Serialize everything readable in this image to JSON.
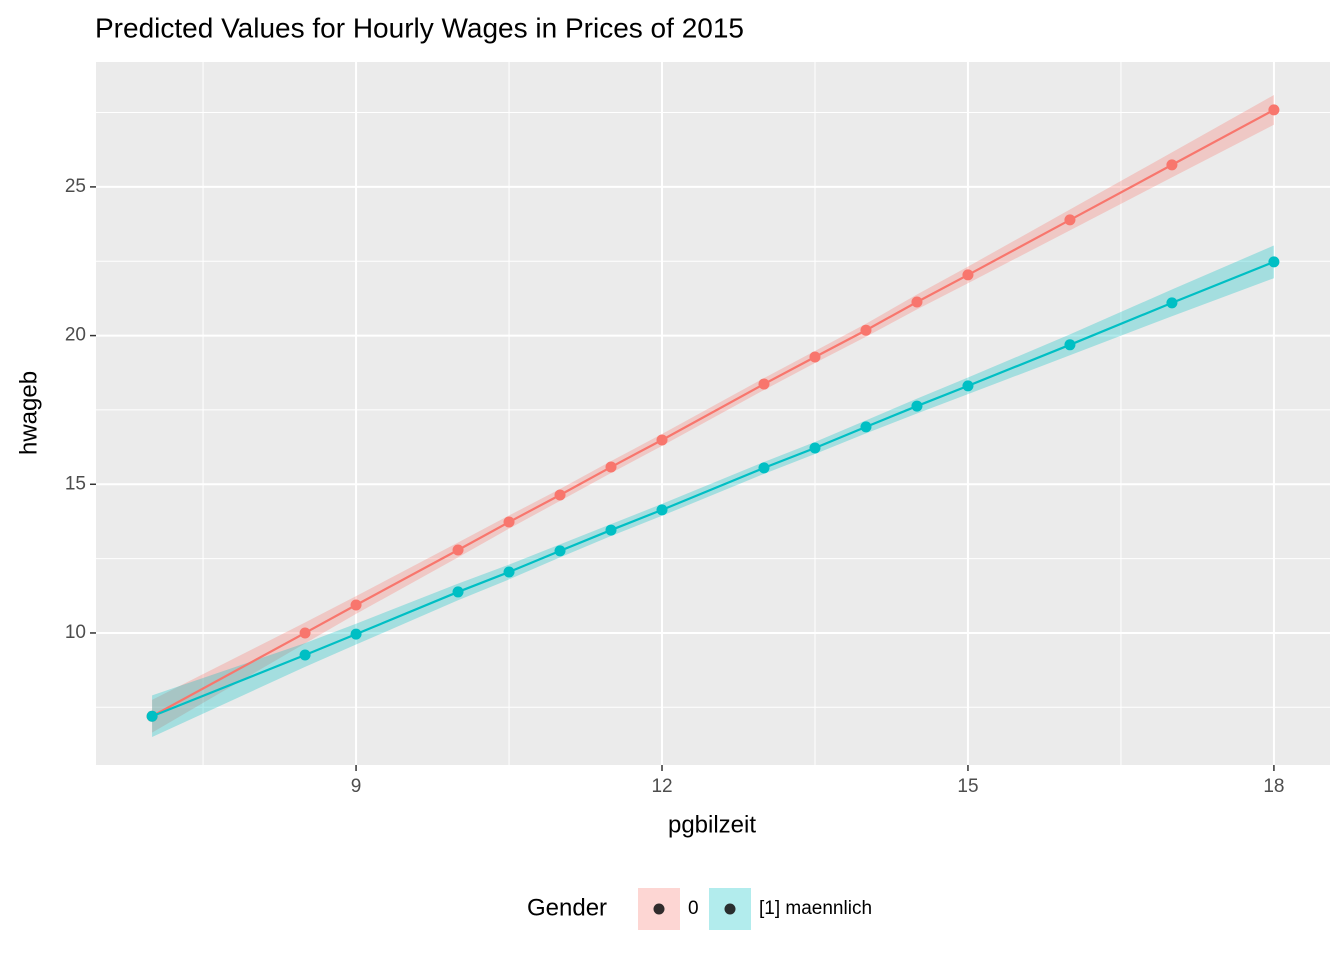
{
  "chart_data": {
    "type": "line",
    "title": "Predicted Values for Hourly Wages in Prices of 2015",
    "x_label": "pgbilzeit",
    "y_label": "hwageb",
    "x": [
      7,
      8.5,
      9,
      10,
      10.5,
      11,
      11.5,
      12,
      13,
      13.5,
      14,
      14.5,
      15,
      16,
      17,
      18
    ],
    "series": [
      {
        "name": "0",
        "color": "#F8766D",
        "values": [
          7.2,
          10.0,
          10.94,
          12.79,
          13.73,
          14.64,
          15.58,
          16.49,
          18.37,
          19.28,
          20.18,
          21.13,
          22.04,
          23.89,
          25.74,
          27.59
        ],
        "ci_lower": [
          6.65,
          9.65,
          10.64,
          12.54,
          13.51,
          14.44,
          15.38,
          16.29,
          18.17,
          19.08,
          19.96,
          20.88,
          21.76,
          23.54,
          25.32,
          27.09
        ],
        "ci_upper": [
          7.75,
          10.35,
          11.24,
          13.04,
          13.95,
          14.84,
          15.78,
          16.69,
          18.57,
          19.48,
          20.4,
          21.38,
          22.32,
          24.24,
          26.16,
          28.09
        ]
      },
      {
        "name": "[1] maennlich",
        "color": "#00BFC4",
        "values": [
          7.2,
          9.26,
          9.96,
          11.38,
          12.05,
          12.76,
          13.46,
          14.14,
          15.55,
          16.22,
          16.93,
          17.63,
          18.31,
          19.69,
          21.1,
          22.48
        ],
        "ci_lower": [
          6.5,
          8.86,
          9.61,
          11.1,
          11.8,
          12.54,
          13.26,
          13.94,
          15.35,
          16.02,
          16.71,
          17.38,
          18.03,
          19.34,
          20.65,
          21.93
        ],
        "ci_upper": [
          7.9,
          9.66,
          10.31,
          11.66,
          12.3,
          12.98,
          13.66,
          14.34,
          15.75,
          16.42,
          17.15,
          17.88,
          18.59,
          20.04,
          21.55,
          23.03
        ]
      }
    ],
    "legend_title": "Gender",
    "legend_position": "bottom",
    "xlim": [
      6.45,
      18.55
    ],
    "xticks": [
      9,
      12,
      15,
      18
    ],
    "x_minor_ticks": [
      7.5,
      10.5,
      13.5,
      16.5
    ],
    "ylim": [
      5.56,
      29.2
    ],
    "yticks": [
      10,
      15,
      20,
      25
    ],
    "y_minor_ticks": [
      7.5,
      12.5,
      17.5,
      22.5,
      27.5
    ],
    "grid": true
  }
}
